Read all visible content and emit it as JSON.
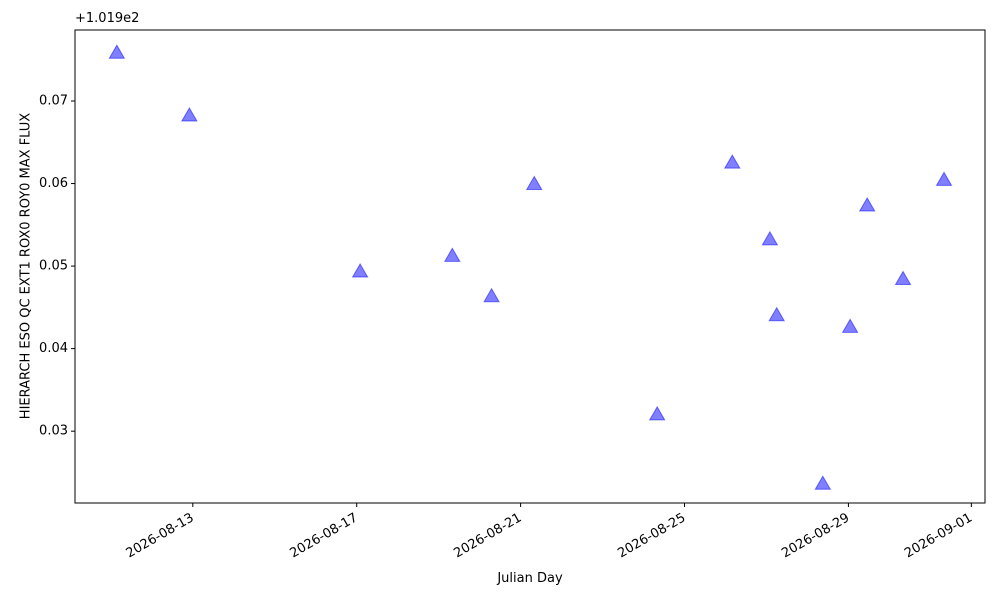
{
  "chart_data": {
    "type": "scatter",
    "x_label": "Julian Day",
    "y_label": "HIERARCH ESO QC EXT1 ROX0 ROY0 MAX FLUX",
    "y_offset_label": "+1.019e2",
    "marker": "triangle",
    "color": "#0000ff",
    "x": [
      "2026-08-11T03:30",
      "2026-08-12T22:00",
      "2026-08-17T02:00",
      "2026-08-19T08:00",
      "2026-08-20T07:00",
      "2026-08-21T08:00",
      "2026-08-24T08:00",
      "2026-08-26T04:00",
      "2026-08-27T02:00",
      "2026-08-27T06:00",
      "2026-08-28T09:00",
      "2026-08-29T01:00",
      "2026-08-29T11:00",
      "2026-08-30T08:00",
      "2026-08-31T08:00"
    ],
    "values": [
      0.0759,
      0.0683,
      0.0494,
      0.0513,
      0.0464,
      0.06,
      0.0321,
      0.0626,
      0.0533,
      0.0441,
      0.0237,
      0.0427,
      0.0574,
      0.0485,
      0.0605
    ],
    "xlim": [
      "2026-08-10T03:00",
      "2026-09-01T08:00"
    ],
    "xticks": [
      "2026-08-13",
      "2026-08-17",
      "2026-08-21",
      "2026-08-25",
      "2026-08-29",
      "2026-09-01"
    ],
    "ylim": [
      0.0213,
      0.0786
    ],
    "yticks": [
      0.03,
      0.04,
      0.05,
      0.06,
      0.07
    ]
  }
}
